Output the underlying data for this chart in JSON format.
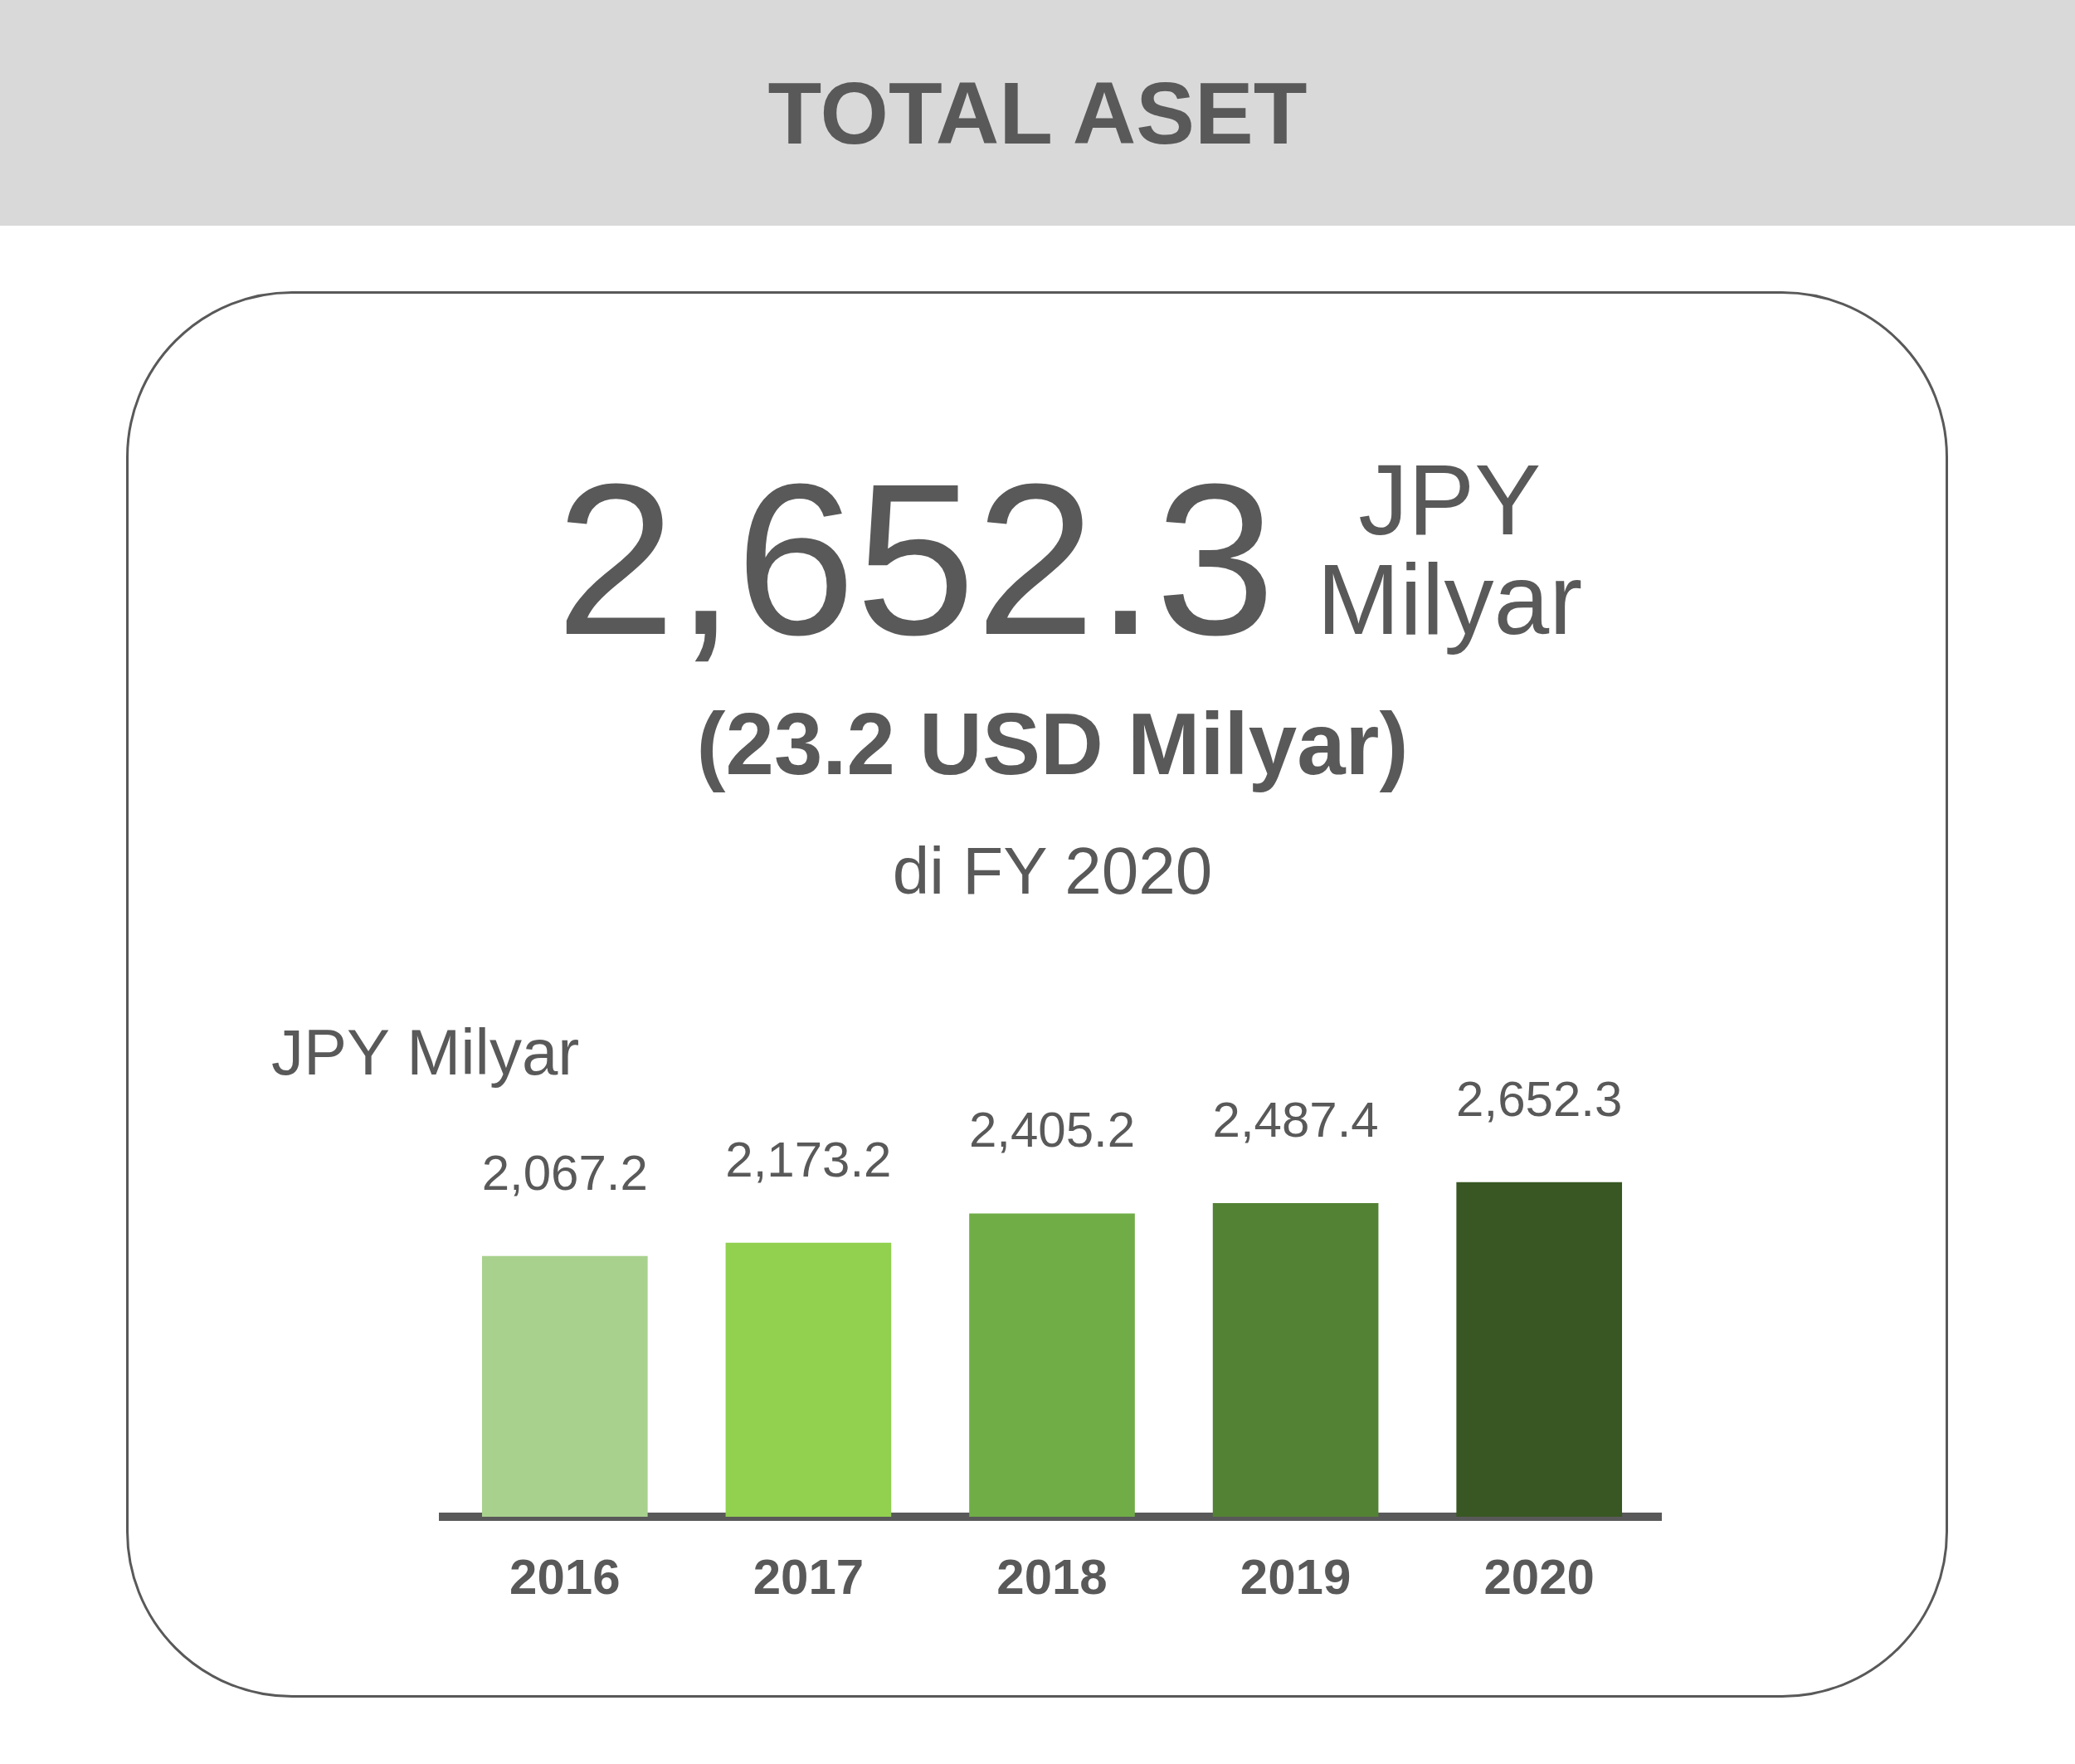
{
  "chart_data": {
    "type": "bar",
    "title": "TOTAL ASET",
    "ylabel": "JPY Milyar",
    "annotations": [
      "2,652.3",
      "JPY Milyar",
      "(23.2 USD Milyar)",
      "di FY 2020"
    ],
    "categories": [
      "2016",
      "2017",
      "2018",
      "2019",
      "2020"
    ],
    "values": [
      2067.2,
      2173.2,
      2405.2,
      2487.4,
      2652.3
    ],
    "colors": [
      "#a9d18e",
      "#92d050",
      "#70ad47",
      "#548235",
      "#385723"
    ],
    "value_labels": [
      "2,067.2",
      "2,173.2",
      "2,405.2",
      "2,487.4",
      "2,652.3"
    ],
    "tick_labels": "x",
    "grid": false,
    "legend": false
  }
}
